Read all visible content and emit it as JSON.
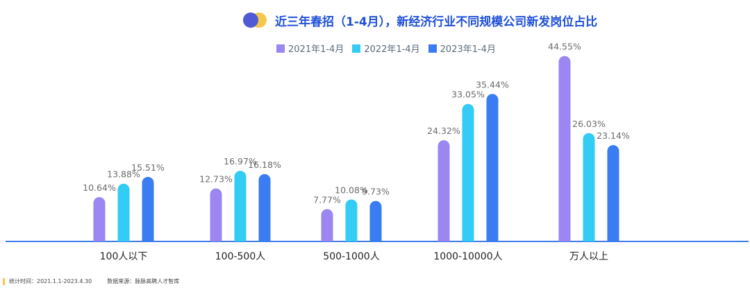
{
  "title": "近三年春招（1-4月），新经济行业不同规模公司新发岗位占比",
  "footer": {
    "stat_time": "统计时间：2021.1.1-2023.4.30",
    "source": "数据来源：脉脉高聘人才智库"
  },
  "colors": {
    "title": "#1E4FD8",
    "axis": "#3D7BE8",
    "label": "#6b6b6b",
    "category_label": "#222222",
    "dot_blue": "#4F5BD5",
    "dot_yellow": "#F5C84B"
  },
  "chart_data": {
    "type": "bar",
    "categories": [
      "100人以下",
      "100-500人",
      "500-1000人",
      "1000-10000人",
      "万人以上"
    ],
    "series": [
      {
        "name": "2021年1-4月",
        "color": "#9B86F2",
        "values": [
          10.64,
          12.73,
          7.77,
          24.32,
          44.55
        ],
        "labels": [
          "10.64%",
          "12.73%",
          "7.77%",
          "24.32%",
          "44.55%"
        ]
      },
      {
        "name": "2022年1-4月",
        "color": "#33CCF5",
        "values": [
          13.88,
          16.97,
          10.08,
          33.05,
          26.03
        ],
        "labels": [
          "13.88%",
          "16.97%",
          "10.08%",
          "33.05%",
          "26.03%"
        ]
      },
      {
        "name": "2023年1-4月",
        "color": "#3A7CF2",
        "values": [
          15.51,
          16.18,
          9.73,
          35.44,
          23.14
        ],
        "labels": [
          "15.51%",
          "16.18%",
          "9.73%",
          "35.44%",
          "23.14%"
        ]
      }
    ],
    "xlabel": "",
    "ylabel": "",
    "ylim": [
      0,
      50
    ],
    "grid": false,
    "legend": "top-center"
  }
}
